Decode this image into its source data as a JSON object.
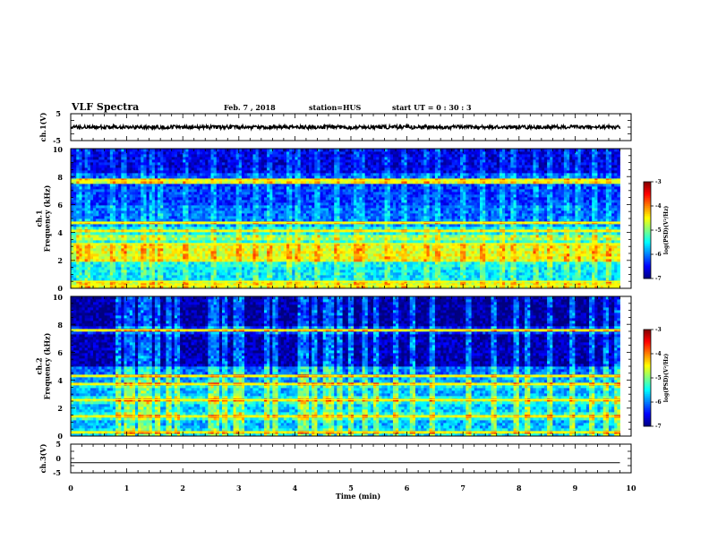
{
  "header": {
    "title": "VLF Spectra",
    "date": "Feb. 7 , 2018",
    "station": "station=HUS",
    "start": "start UT =  0 : 30 : 3"
  },
  "chart_data": [
    {
      "type": "line",
      "panel": "ch1-waveform",
      "ylabel": "ch.1(V)",
      "ylim": [
        -5,
        5
      ],
      "yticks": [
        "5",
        "-5"
      ],
      "xlim": [
        0,
        10
      ],
      "series_extent_min": [
        0,
        9.8
      ],
      "level_V": 0,
      "color": "#000000"
    },
    {
      "type": "heatmap",
      "panel": "ch1-spectrogram",
      "ylabel": "ch.1\nFrequency (kHz)",
      "ylim": [
        0,
        10
      ],
      "yticks": [
        "0",
        "2",
        "4",
        "6",
        "8",
        "10"
      ],
      "xlim": [
        0,
        10
      ],
      "data_extent_min": [
        0,
        9.8
      ],
      "colorbar": {
        "label": "log(PSD)(V²/Hz)",
        "range": [
          -7,
          -3
        ],
        "ticks": [
          "-3",
          "-4",
          "-5",
          "-6",
          "-7"
        ]
      },
      "bands_kHz": [
        {
          "f0": 0.0,
          "f1": 0.6,
          "level": -5.3
        },
        {
          "f0": 0.6,
          "f1": 1.5,
          "level": -5.6
        },
        {
          "f0": 1.5,
          "f1": 2.0,
          "level": -5.5
        },
        {
          "f0": 2.0,
          "f1": 3.0,
          "level": -4.6
        },
        {
          "f0": 3.0,
          "f1": 3.4,
          "level": -5.4
        },
        {
          "f0": 3.4,
          "f1": 3.8,
          "level": -4.9
        },
        {
          "f0": 3.8,
          "f1": 4.4,
          "level": -5.5
        },
        {
          "f0": 4.4,
          "f1": 4.8,
          "level": -5.9
        },
        {
          "f0": 4.8,
          "f1": 6.0,
          "level": -6.1
        },
        {
          "f0": 6.0,
          "f1": 7.5,
          "level": -6.3
        },
        {
          "f0": 7.5,
          "f1": 8.2,
          "level": -6.2
        },
        {
          "f0": 8.2,
          "f1": 10.0,
          "level": -6.6
        }
      ],
      "lines_kHz": [
        0.2,
        0.5,
        3.2,
        4.1,
        4.7,
        7.7
      ],
      "bursts_min": [
        0.15,
        0.3,
        0.75,
        0.95,
        1.3,
        1.45,
        1.6,
        2.05,
        2.55,
        3.0,
        3.3,
        3.55,
        3.9,
        4.05,
        4.4,
        4.75,
        5.1,
        5.2,
        5.65,
        5.95,
        6.35,
        6.55,
        7.0,
        7.35,
        7.7,
        7.9,
        8.3,
        8.55,
        8.85,
        9.05,
        9.35,
        9.6
      ]
    },
    {
      "type": "heatmap",
      "panel": "ch2-spectrogram",
      "ylabel": "ch.2\nFrequency (kHz)",
      "ylim": [
        0,
        10
      ],
      "yticks": [
        "0",
        "2",
        "4",
        "6",
        "8",
        "10"
      ],
      "xlim": [
        0,
        10
      ],
      "data_extent_min": [
        0,
        9.8
      ],
      "colorbar": {
        "label": "log(PSD)(V²/Hz)",
        "range": [
          -7,
          -3
        ],
        "ticks": [
          "-3",
          "-4",
          "-5",
          "-6",
          "-7"
        ]
      },
      "bands_kHz": [
        {
          "f0": 0.0,
          "f1": 0.6,
          "level": -5.6
        },
        {
          "f0": 0.6,
          "f1": 1.2,
          "level": -5.8
        },
        {
          "f0": 1.2,
          "f1": 1.7,
          "level": -5.4
        },
        {
          "f0": 1.7,
          "f1": 2.4,
          "level": -5.7
        },
        {
          "f0": 2.4,
          "f1": 2.9,
          "level": -5.4
        },
        {
          "f0": 2.9,
          "f1": 3.4,
          "level": -5.8
        },
        {
          "f0": 3.4,
          "f1": 3.9,
          "level": -5.5
        },
        {
          "f0": 3.9,
          "f1": 4.5,
          "level": -5.9
        },
        {
          "f0": 4.5,
          "f1": 5.0,
          "level": -6.1
        },
        {
          "f0": 5.0,
          "f1": 7.4,
          "level": -6.8
        },
        {
          "f0": 7.4,
          "f1": 7.9,
          "level": -6.4
        },
        {
          "f0": 7.9,
          "f1": 10.0,
          "level": -6.9
        }
      ],
      "lines_kHz": [
        0.3,
        1.4,
        2.6,
        3.7,
        4.3,
        7.6
      ],
      "bursts_min": [
        0.85,
        1.0,
        1.1,
        1.25,
        1.3,
        1.4,
        1.55,
        1.75,
        1.9,
        2.5,
        2.6,
        2.75,
        2.95,
        3.05,
        3.5,
        3.65,
        4.1,
        4.2,
        4.35,
        4.55,
        4.65,
        4.8,
        5.0,
        5.25,
        5.45,
        5.8,
        6.1,
        6.45,
        7.1,
        7.55,
        7.95,
        8.15,
        8.55,
        8.95,
        9.3,
        9.55,
        9.75
      ]
    },
    {
      "type": "line",
      "panel": "ch3-waveform",
      "ylabel": "ch.3(V)",
      "ylim": [
        -5,
        5
      ],
      "yticks": [
        "5",
        "0",
        "-5"
      ],
      "xlim": [
        0,
        10
      ],
      "xticks": [
        "0",
        "1",
        "2",
        "3",
        "4",
        "5",
        "6",
        "7",
        "8",
        "9",
        "10"
      ],
      "xlabel": "Time (min)",
      "series_extent_min": [
        0,
        9.8
      ],
      "level_V": -1.5,
      "color": "#000000"
    }
  ]
}
